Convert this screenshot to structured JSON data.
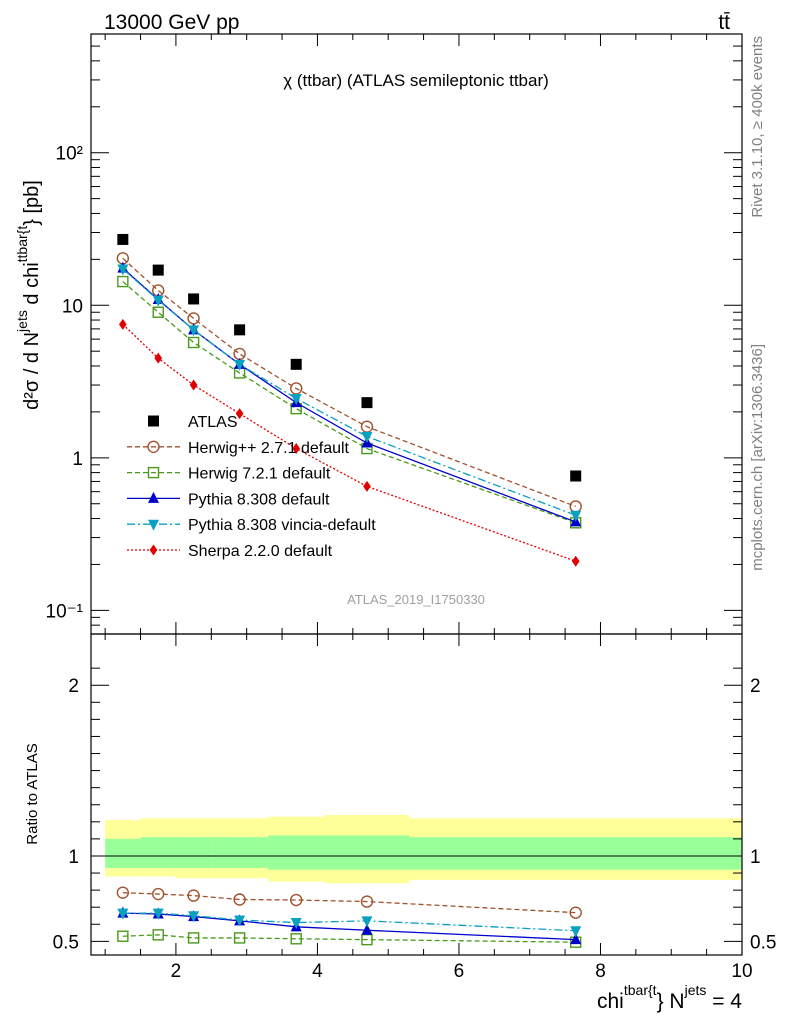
{
  "header": {
    "energy_label": "13000 GeV pp",
    "process_label": "tt̄"
  },
  "side_labels": {
    "rivet": "Rivet 3.1.10, ≥ 400k events",
    "mcplots": "mcplots.cern.ch [arXiv:1306.3436]"
  },
  "chart_data": [
    {
      "type": "line",
      "title": "χ (ttbar) (ATLAS semileptonic ttbar)",
      "analysis_id": "ATLAS_2019_I1750330",
      "ylabel": {
        "base": "d²σ / d N",
        "sup1": "jets",
        "mid": " d chi",
        "sup2": "ttbar{t",
        "tail": "} [pb]"
      },
      "xlim": [
        0.8,
        10.0
      ],
      "ylim": [
        0.07,
        600
      ],
      "yscale": "log",
      "y_ticks": [
        {
          "v": 0.1,
          "label": "10⁻¹"
        },
        {
          "v": 1,
          "label": "1"
        },
        {
          "v": 10,
          "label": "10"
        },
        {
          "v": 100,
          "label": "10²"
        }
      ],
      "x": [
        1.25,
        1.75,
        2.25,
        2.9,
        3.7,
        4.7,
        7.65
      ],
      "series": [
        {
          "name": "ATLAS",
          "color": "#000000",
          "marker": "square",
          "line": "none",
          "values": [
            27,
            17,
            11,
            6.9,
            4.1,
            2.3,
            0.76
          ]
        },
        {
          "name": "Herwig++ 2.7.1 default",
          "color": "#a0522d",
          "marker": "circle-open",
          "line": "dashed",
          "values": [
            20.3,
            12.5,
            8.2,
            4.8,
            2.85,
            1.6,
            0.48
          ]
        },
        {
          "name": "Herwig 7.2.1 default",
          "color": "#4a9a1a",
          "marker": "square-open",
          "line": "dashed",
          "values": [
            14.3,
            9.0,
            5.7,
            3.6,
            2.1,
            1.15,
            0.375
          ]
        },
        {
          "name": "Pythia 8.308 default",
          "color": "#0000cc",
          "marker": "triangle-up",
          "line": "solid",
          "values": [
            17.5,
            10.9,
            6.9,
            4.1,
            2.3,
            1.25,
            0.38
          ]
        },
        {
          "name": "Pythia 8.308 vincia-default",
          "color": "#0aa0c0",
          "marker": "triangle-down",
          "line": "dashdot",
          "values": [
            17.3,
            10.8,
            6.9,
            4.1,
            2.45,
            1.38,
            0.42
          ]
        },
        {
          "name": "Sherpa 2.2.0 default",
          "color": "#e00000",
          "marker": "diamond",
          "line": "dotted",
          "values": [
            7.5,
            4.5,
            3.0,
            1.95,
            1.15,
            0.65,
            0.21
          ]
        }
      ]
    },
    {
      "type": "line",
      "ylabel": "Ratio to ATLAS",
      "xlabel": {
        "base": "chi",
        "sup1": "tbar{t",
        "mid": "} N",
        "sup2": "jets",
        "tail": " = 4"
      },
      "xlim": [
        0.8,
        10.0
      ],
      "ylim": [
        0.42,
        2.3
      ],
      "x_ticks": [
        2,
        4,
        6,
        8,
        10
      ],
      "y_ticks": [
        0.5,
        1,
        2
      ],
      "x": [
        1.25,
        1.75,
        2.25,
        2.9,
        3.7,
        4.7,
        7.65
      ],
      "bands": {
        "edges": [
          1.0,
          1.5,
          2.0,
          2.5,
          3.3,
          4.1,
          5.3,
          10.0
        ],
        "outer_color": "#ffff99",
        "inner_color": "#99ff99",
        "outer_lo": [
          0.88,
          0.88,
          0.87,
          0.87,
          0.85,
          0.84,
          0.86
        ],
        "outer_hi": [
          1.21,
          1.22,
          1.22,
          1.22,
          1.23,
          1.24,
          1.22
        ],
        "inner_lo": [
          0.93,
          0.93,
          0.93,
          0.93,
          0.92,
          0.92,
          0.92
        ],
        "inner_hi": [
          1.1,
          1.11,
          1.11,
          1.11,
          1.12,
          1.12,
          1.11
        ]
      },
      "series": [
        {
          "name": "Herwig++ 2.7.1 default",
          "color": "#a0522d",
          "marker": "circle-open",
          "line": "dashed",
          "values": [
            0.785,
            0.777,
            0.768,
            0.745,
            0.742,
            0.733,
            0.668
          ]
        },
        {
          "name": "Herwig 7.2.1 default",
          "color": "#4a9a1a",
          "marker": "square-open",
          "line": "dashed",
          "values": [
            0.53,
            0.538,
            0.52,
            0.52,
            0.515,
            0.51,
            0.495
          ]
        },
        {
          "name": "Pythia 8.308 default",
          "color": "#0000cc",
          "marker": "triangle-up",
          "line": "solid",
          "values": [
            0.665,
            0.66,
            0.645,
            0.62,
            0.585,
            0.565,
            0.51
          ]
        },
        {
          "name": "Pythia 8.308 vincia-default",
          "color": "#0aa0c0",
          "marker": "triangle-down",
          "line": "dashdot",
          "values": [
            0.665,
            0.665,
            0.65,
            0.625,
            0.61,
            0.62,
            0.562
          ]
        }
      ]
    }
  ]
}
